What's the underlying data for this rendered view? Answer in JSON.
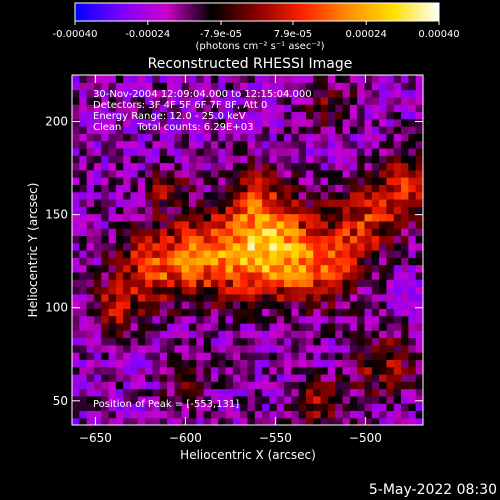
{
  "app": {
    "timestamp": "5-May-2022 08:30"
  },
  "colorbar": {
    "tick_labels": [
      "-0.00040",
      "-0.00024",
      "-7.9e-05",
      "7.9e-05",
      "0.00024",
      "0.00040"
    ],
    "tick_values": [
      -0.0004,
      -0.00024,
      -7.9e-05,
      7.9e-05,
      0.00024,
      0.0004
    ],
    "range": [
      -0.0004,
      0.0004
    ],
    "unit_label": "(photons cm⁻² s⁻¹ asec⁻²)",
    "colors": [
      "#0000ff",
      "#7a00ff",
      "#cc00cc",
      "#000000",
      "#8a0000",
      "#ff2200",
      "#ff8c00",
      "#ffe000",
      "#ffffff"
    ]
  },
  "chart_data": {
    "type": "heatmap",
    "title": "Reconstructed RHESSI Image",
    "xlabel": "Heliocentric X (arcsec)",
    "ylabel": "Heliocentric Y (arcsec)",
    "xlim": [
      -663,
      -468
    ],
    "ylim": [
      37,
      225
    ],
    "x_ticks": [
      -650,
      -600,
      -550,
      -500
    ],
    "y_ticks": [
      50,
      100,
      150,
      200
    ],
    "annotations": [
      "30-Nov-2004 12:09:04.000 to 12:15:04.000",
      "Detectors: 3F 4F 5F 6F 7F 8F, Att 0",
      "Energy Range: 12.0 - 25.0 keV",
      "Clean     Total counts: 6.29E+03"
    ],
    "peak_label": "Position of Peak = [-553,131]",
    "peak": [
      -553,
      131
    ],
    "grid": false
  }
}
